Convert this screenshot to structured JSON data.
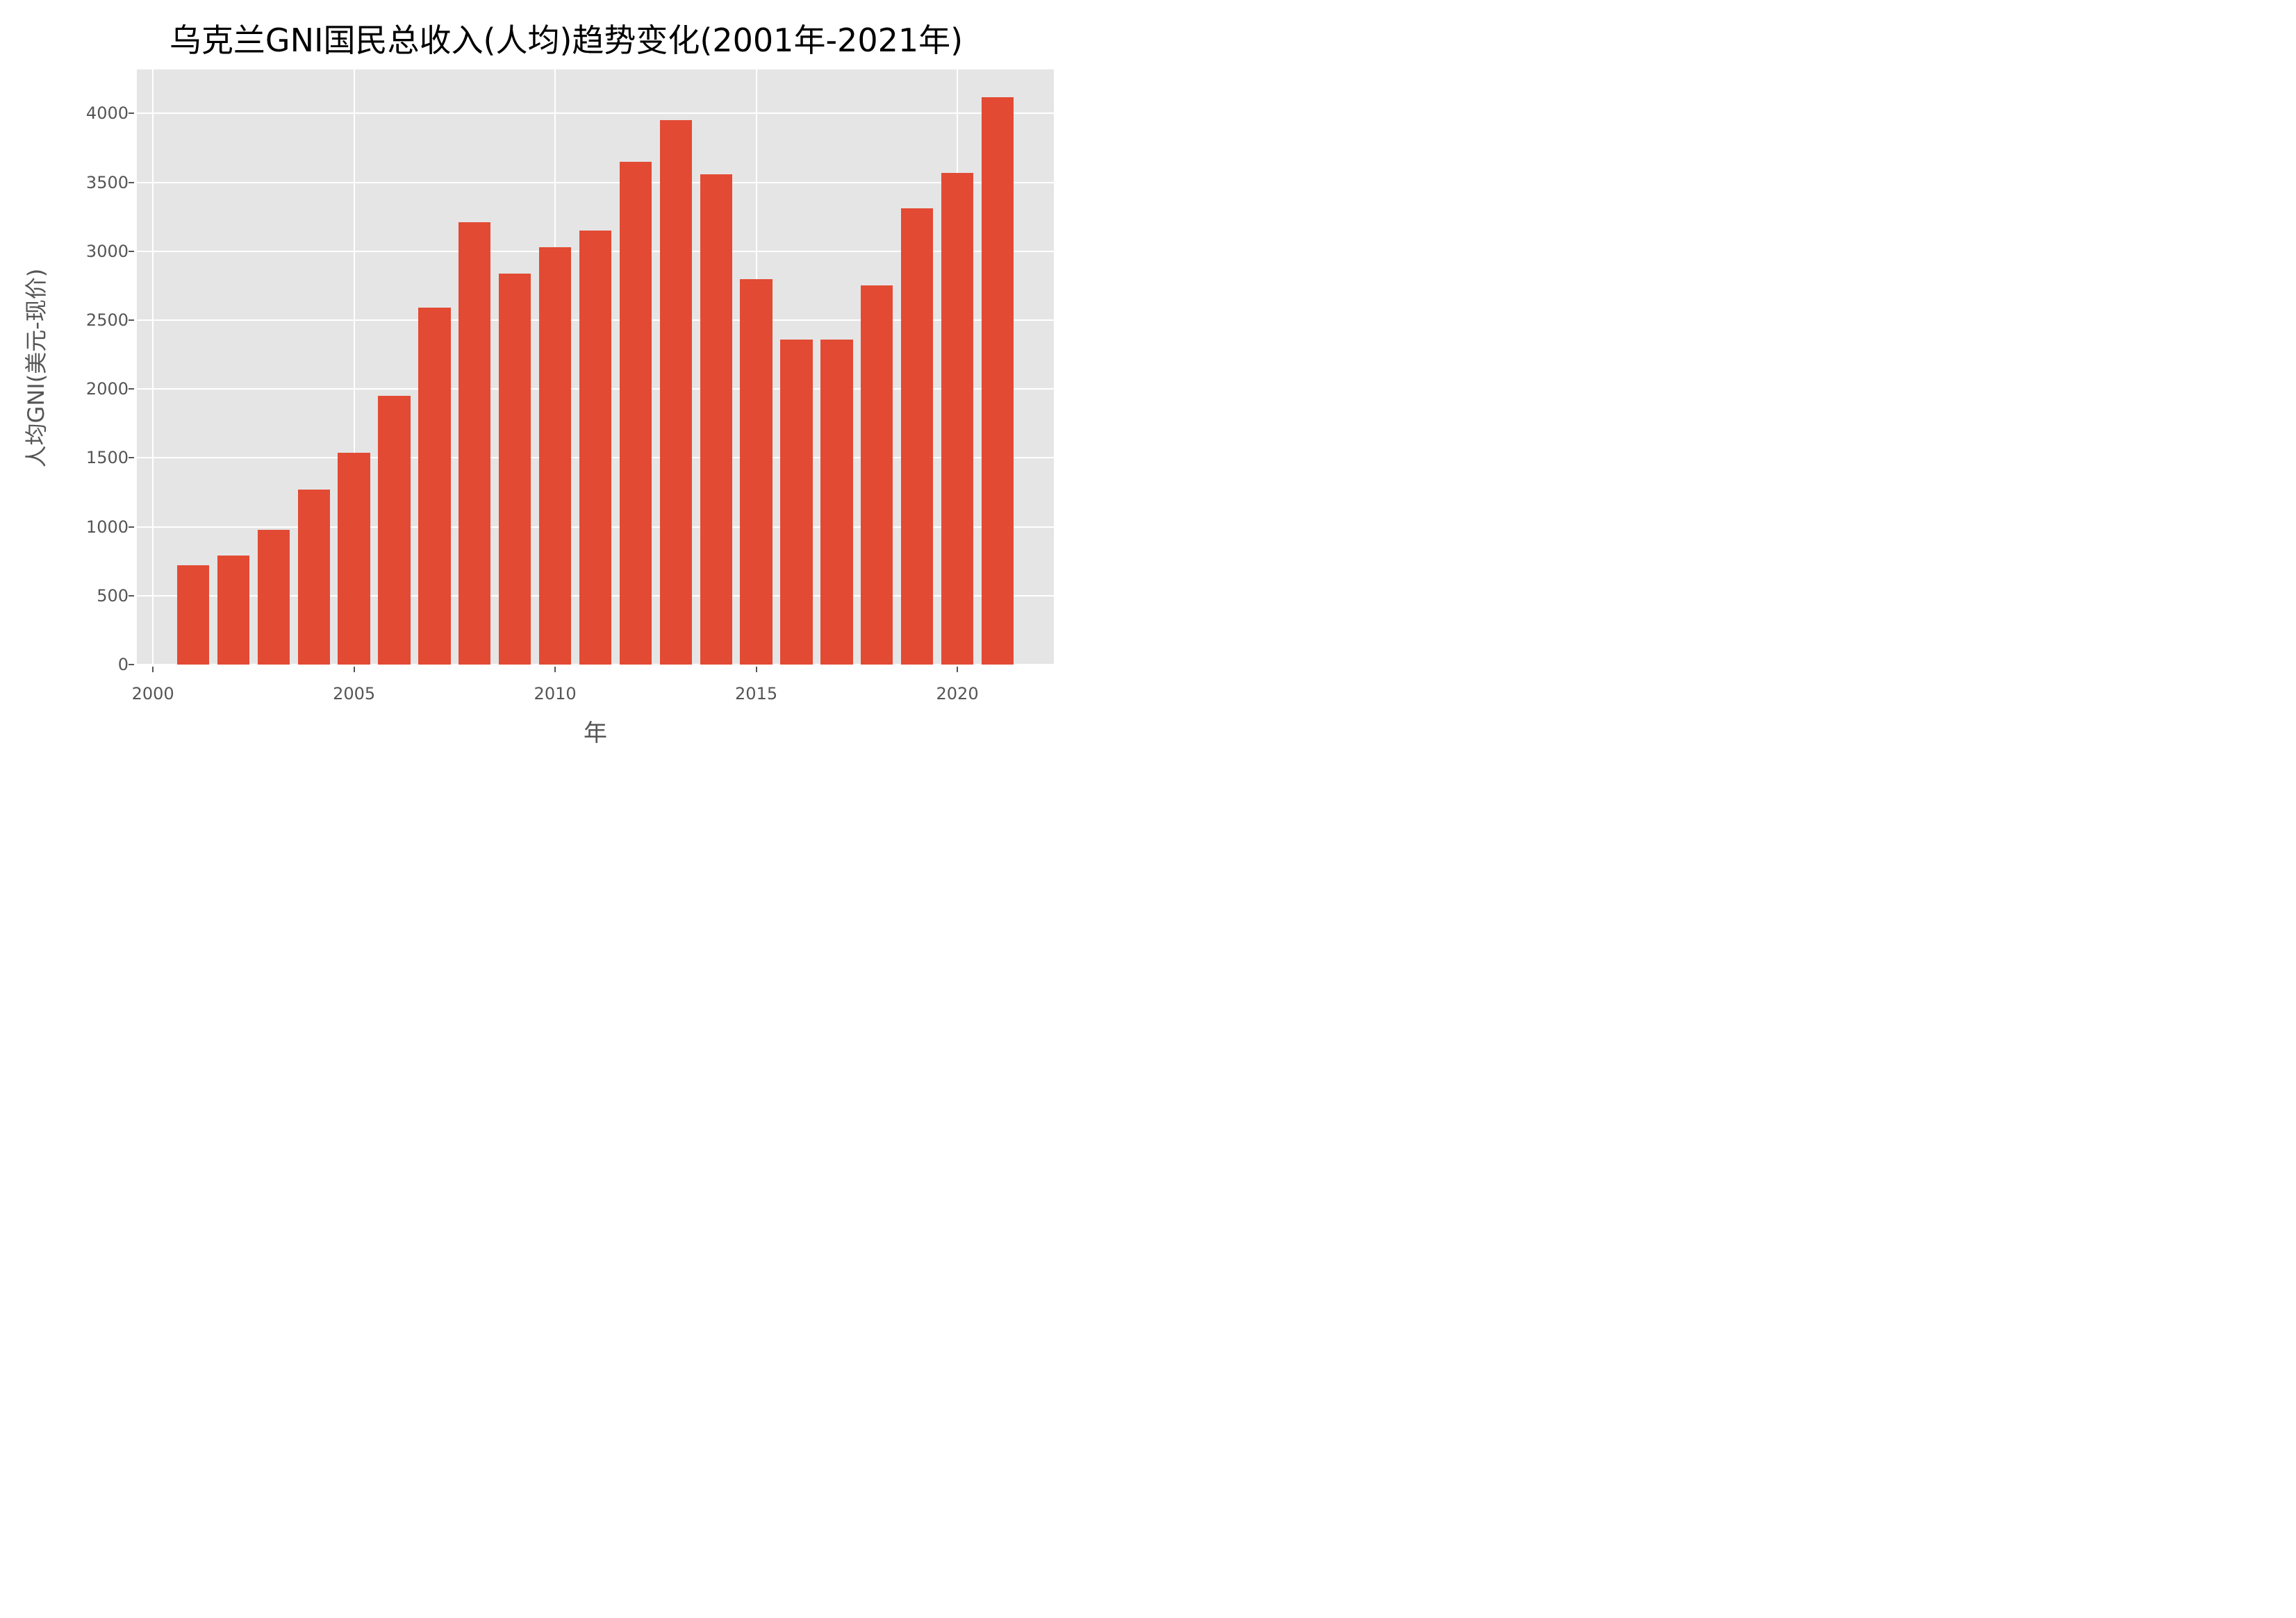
{
  "chart_data": {
    "type": "bar",
    "title": "乌克兰GNI国民总收入(人均)趋势变化(2001年-2021年)",
    "xlabel": "年",
    "ylabel": "人均GNI(美元-现价)",
    "categories": [
      2001,
      2002,
      2003,
      2004,
      2005,
      2006,
      2007,
      2008,
      2009,
      2010,
      2011,
      2012,
      2013,
      2014,
      2015,
      2016,
      2017,
      2018,
      2019,
      2020,
      2021
    ],
    "values": [
      720,
      790,
      980,
      1270,
      1540,
      1950,
      2590,
      3210,
      2840,
      3030,
      3150,
      3650,
      3950,
      3560,
      2800,
      2360,
      2360,
      2750,
      3310,
      3570,
      4120
    ],
    "xticks": [
      "2000",
      "2005",
      "2010",
      "2015",
      "2020"
    ],
    "yticks": [
      "0",
      "500",
      "1000",
      "1500",
      "2000",
      "2500",
      "3000",
      "3500",
      "4000"
    ],
    "ylim": [
      0,
      4320
    ],
    "xlim": [
      1999.6,
      2022.4
    ],
    "grid": true,
    "bar_color": "#e24a33",
    "background_color": "#e5e5e5",
    "style": "ggplot"
  }
}
